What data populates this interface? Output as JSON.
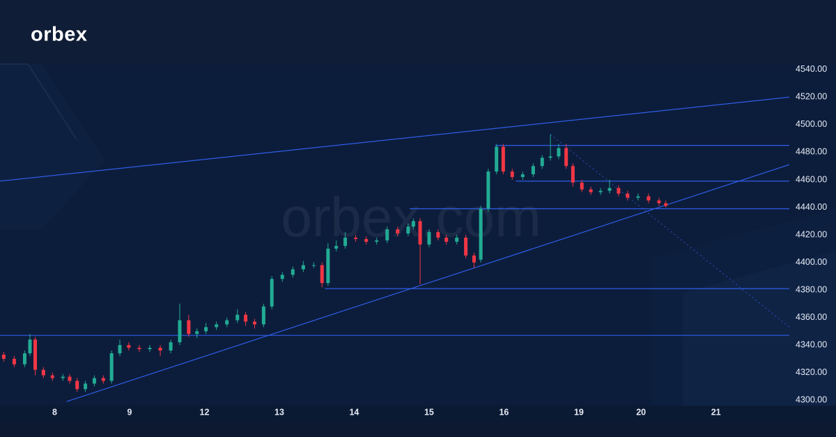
{
  "logo": "orbex",
  "chart_data": {
    "type": "candlestick",
    "watermark": "orbex.com",
    "up_color": "#22ab94",
    "down_color": "#f23645",
    "line_color": "#2f5de8",
    "grid": false,
    "xlim": [
      -0.73,
      9.81
    ],
    "ylim": [
      4296,
      4544
    ],
    "xticks": [
      {
        "value": 0,
        "label": "8"
      },
      {
        "value": 1,
        "label": "9"
      },
      {
        "value": 2,
        "label": "12"
      },
      {
        "value": 3,
        "label": "13"
      },
      {
        "value": 4,
        "label": "14"
      },
      {
        "value": 5,
        "label": "15"
      },
      {
        "value": 6,
        "label": "16"
      },
      {
        "value": 7,
        "label": "19"
      },
      {
        "value": 7.83,
        "label": "20"
      },
      {
        "value": 8.83,
        "label": "21"
      }
    ],
    "yticks": [
      {
        "value": 4300,
        "label": "4300.00"
      },
      {
        "value": 4320,
        "label": "4320.00"
      },
      {
        "value": 4340,
        "label": "4340.00"
      },
      {
        "value": 4360,
        "label": "4360.00"
      },
      {
        "value": 4380,
        "label": "4380.00"
      },
      {
        "value": 4400,
        "label": "4400.00"
      },
      {
        "value": 4420,
        "label": "4420.00"
      },
      {
        "value": 4440,
        "label": "4440.00"
      },
      {
        "value": 4460,
        "label": "4460.00"
      },
      {
        "value": 4480,
        "label": "4480.00"
      },
      {
        "value": 4500,
        "label": "4500.00"
      },
      {
        "value": 4520,
        "label": "4520.00"
      },
      {
        "value": 4540,
        "label": "4540.00"
      }
    ],
    "x": [
      -0.68,
      -0.54,
      -0.4,
      -0.33,
      -0.26,
      -0.15,
      -0.03,
      0.11,
      0.2,
      0.3,
      0.41,
      0.53,
      0.65,
      0.76,
      0.87,
      0.99,
      1.13,
      1.27,
      1.41,
      1.55,
      1.67,
      1.79,
      1.9,
      2.02,
      2.16,
      2.3,
      2.44,
      2.55,
      2.67,
      2.79,
      2.9,
      3.04,
      3.18,
      3.32,
      3.46,
      3.57,
      3.65,
      3.76,
      3.88,
      4.02,
      4.16,
      4.3,
      4.44,
      4.58,
      4.72,
      4.79,
      4.88,
      5.0,
      5.12,
      5.23,
      5.37,
      5.49,
      5.6,
      5.69,
      5.79,
      5.9,
      5.99,
      6.11,
      6.25,
      6.39,
      6.51,
      6.62,
      6.73,
      6.83,
      6.92,
      7.04,
      7.16,
      7.29,
      7.41,
      7.53,
      7.65,
      7.79,
      7.93,
      8.07,
      8.16
    ],
    "open": [
      4333,
      4330,
      4326,
      4334,
      4344,
      4322,
      4318,
      4316,
      4317,
      4314,
      4308,
      4312,
      4316,
      4314,
      4334,
      4340,
      4338,
      4337,
      4338,
      4336,
      4342,
      4358,
      4348,
      4350,
      4353,
      4355,
      4358,
      4362,
      4357,
      4355,
      4368,
      4388,
      4391,
      4395,
      4398,
      4398,
      4385,
      4410,
      4412,
      4418,
      4417,
      4415,
      4416,
      4424,
      4421,
      4426,
      4430,
      4413,
      4422,
      4418,
      4415,
      4418,
      4405,
      4402,
      4439,
      4466,
      4484,
      4466,
      4462,
      4464,
      4470,
      4476,
      4477,
      4483,
      4470,
      4458,
      4453,
      4451,
      4452,
      4454,
      4450,
      4447,
      4448,
      4445,
      4443
    ],
    "high": [
      4335,
      4332,
      4336,
      4348,
      4346,
      4324,
      4320,
      4319,
      4319,
      4316,
      4314,
      4318,
      4318,
      4336,
      4344,
      4342,
      4340,
      4340,
      4340,
      4344,
      4370,
      4362,
      4352,
      4356,
      4357,
      4360,
      4366,
      4364,
      4359,
      4370,
      4390,
      4393,
      4397,
      4401,
      4400,
      4400,
      4414,
      4416,
      4422,
      4420,
      4419,
      4418,
      4426,
      4426,
      4428,
      4432,
      4432,
      4424,
      4424,
      4420,
      4420,
      4420,
      4407,
      4441,
      4468,
      4486,
      4486,
      4468,
      4466,
      4472,
      4478,
      4493,
      4486,
      4486,
      4472,
      4460,
      4455,
      4454,
      4460,
      4456,
      4452,
      4450,
      4450,
      4447,
      4445
    ],
    "low": [
      4328,
      4324,
      4324,
      4332,
      4318,
      4316,
      4314,
      4314,
      4312,
      4306,
      4306,
      4310,
      4312,
      4312,
      4332,
      4336,
      4335,
      4335,
      4332,
      4334,
      4340,
      4346,
      4345,
      4348,
      4351,
      4353,
      4356,
      4354,
      4352,
      4353,
      4366,
      4386,
      4389,
      4393,
      4396,
      4382,
      4383,
      4408,
      4410,
      4415,
      4413,
      4413,
      4414,
      4419,
      4419,
      4424,
      4384,
      4411,
      4416,
      4413,
      4413,
      4403,
      4396,
      4400,
      4437,
      4464,
      4464,
      4460,
      4460,
      4462,
      4468,
      4474,
      4475,
      4468,
      4455,
      4451,
      4449,
      4449,
      4450,
      4448,
      4445,
      4445,
      4443,
      4441,
      4440
    ],
    "close": [
      4330,
      4326,
      4334,
      4344,
      4322,
      4318,
      4316,
      4317,
      4314,
      4308,
      4312,
      4316,
      4314,
      4334,
      4340,
      4338,
      4337,
      4338,
      4336,
      4342,
      4358,
      4348,
      4350,
      4353,
      4355,
      4358,
      4362,
      4357,
      4355,
      4368,
      4388,
      4391,
      4395,
      4398,
      4398,
      4385,
      4410,
      4412,
      4418,
      4417,
      4415,
      4416,
      4424,
      4421,
      4426,
      4430,
      4413,
      4422,
      4418,
      4415,
      4418,
      4405,
      4400,
      4439,
      4466,
      4484,
      4466,
      4462,
      4464,
      4470,
      4476,
      4477,
      4483,
      4470,
      4458,
      4453,
      4451,
      4452,
      4454,
      4450,
      4447,
      4448,
      4445,
      4443,
      4441
    ],
    "lines": [
      {
        "x": [
          -0.73,
          9.81
        ],
        "y": [
          4459,
          4520
        ]
      },
      {
        "x": [
          0.16,
          9.81
        ],
        "y": [
          4299,
          4471
        ]
      },
      {
        "x": [
          5.88,
          9.81
        ],
        "y": [
          4485,
          4485
        ]
      },
      {
        "x": [
          6.16,
          9.81
        ],
        "y": [
          4459,
          4459
        ]
      },
      {
        "x": [
          4.74,
          9.81
        ],
        "y": [
          4439,
          4439
        ]
      },
      {
        "x": [
          3.61,
          9.81
        ],
        "y": [
          4381,
          4381
        ]
      },
      {
        "x": [
          -0.73,
          9.81
        ],
        "y": [
          4347,
          4347
        ]
      },
      {
        "x": [
          6.62,
          9.81
        ],
        "y": [
          4493,
          4353
        ],
        "dashed": true
      }
    ]
  }
}
